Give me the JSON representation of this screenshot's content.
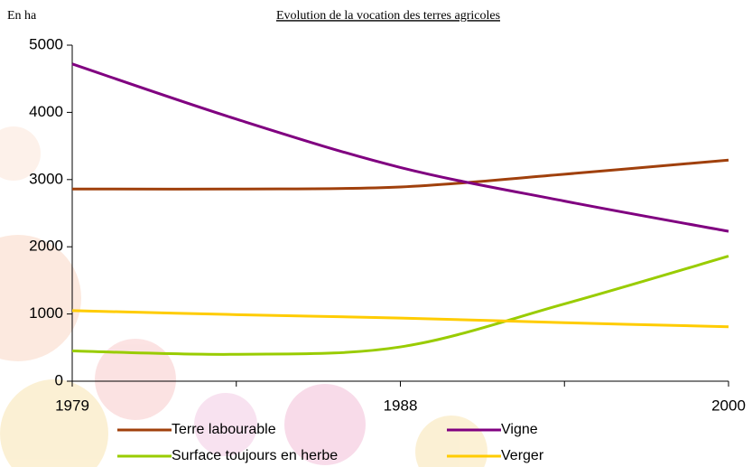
{
  "chart_data": {
    "type": "line",
    "title": "Evolution de la vocation des terres agricoles",
    "y_label": "En ha",
    "categories": [
      "1979",
      null,
      "1988",
      null,
      "2000"
    ],
    "series": [
      {
        "name": "Terre labourable",
        "color": "#a0400c",
        "values": [
          2860,
          2860,
          2890,
          3080,
          3290
        ]
      },
      {
        "name": "Vigne",
        "color": "#800080",
        "values": [
          4720,
          3900,
          3180,
          2680,
          2230
        ]
      },
      {
        "name": "Surface toujours en herbe",
        "color": "#99cc00",
        "values": [
          450,
          400,
          510,
          1150,
          1860
        ]
      },
      {
        "name": "Verger",
        "color": "#ffcc00",
        "values": [
          1050,
          990,
          940,
          870,
          810
        ]
      }
    ],
    "ylim": [
      0,
      5000
    ],
    "yticks": [
      0,
      1000,
      2000,
      3000,
      4000,
      5000
    ],
    "smooth": true
  }
}
